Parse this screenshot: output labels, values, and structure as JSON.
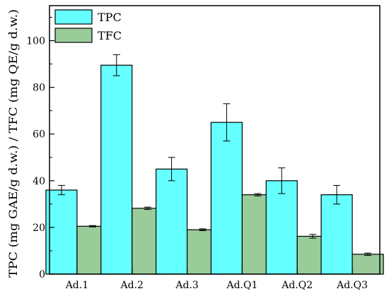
{
  "chart_data": {
    "type": "bar",
    "categories": [
      "Ad.1",
      "Ad.2",
      "Ad.3",
      "Ad.Q1",
      "Ad.Q2",
      "Ad.Q3"
    ],
    "series": [
      {
        "name": "TPC",
        "values": [
          36,
          89.5,
          45,
          65,
          40,
          34
        ],
        "errors": [
          2,
          4.5,
          5,
          8,
          5.5,
          4
        ],
        "color": "#66ffff"
      },
      {
        "name": "TFC",
        "values": [
          20.5,
          28.2,
          19,
          34,
          16.2,
          8.5
        ],
        "errors": [
          0.3,
          0.5,
          0.4,
          0.5,
          0.8,
          0.5
        ],
        "color": "#99cc99"
      }
    ],
    "xlabel": "",
    "ylabel": "TPC (mg GAE/g d.w.) / TFC (mg QE/g d.w.)",
    "ylim": [
      0,
      115
    ],
    "yticks": [
      0,
      20,
      40,
      60,
      80,
      100
    ],
    "grid": false,
    "legend_position": "top-left"
  }
}
